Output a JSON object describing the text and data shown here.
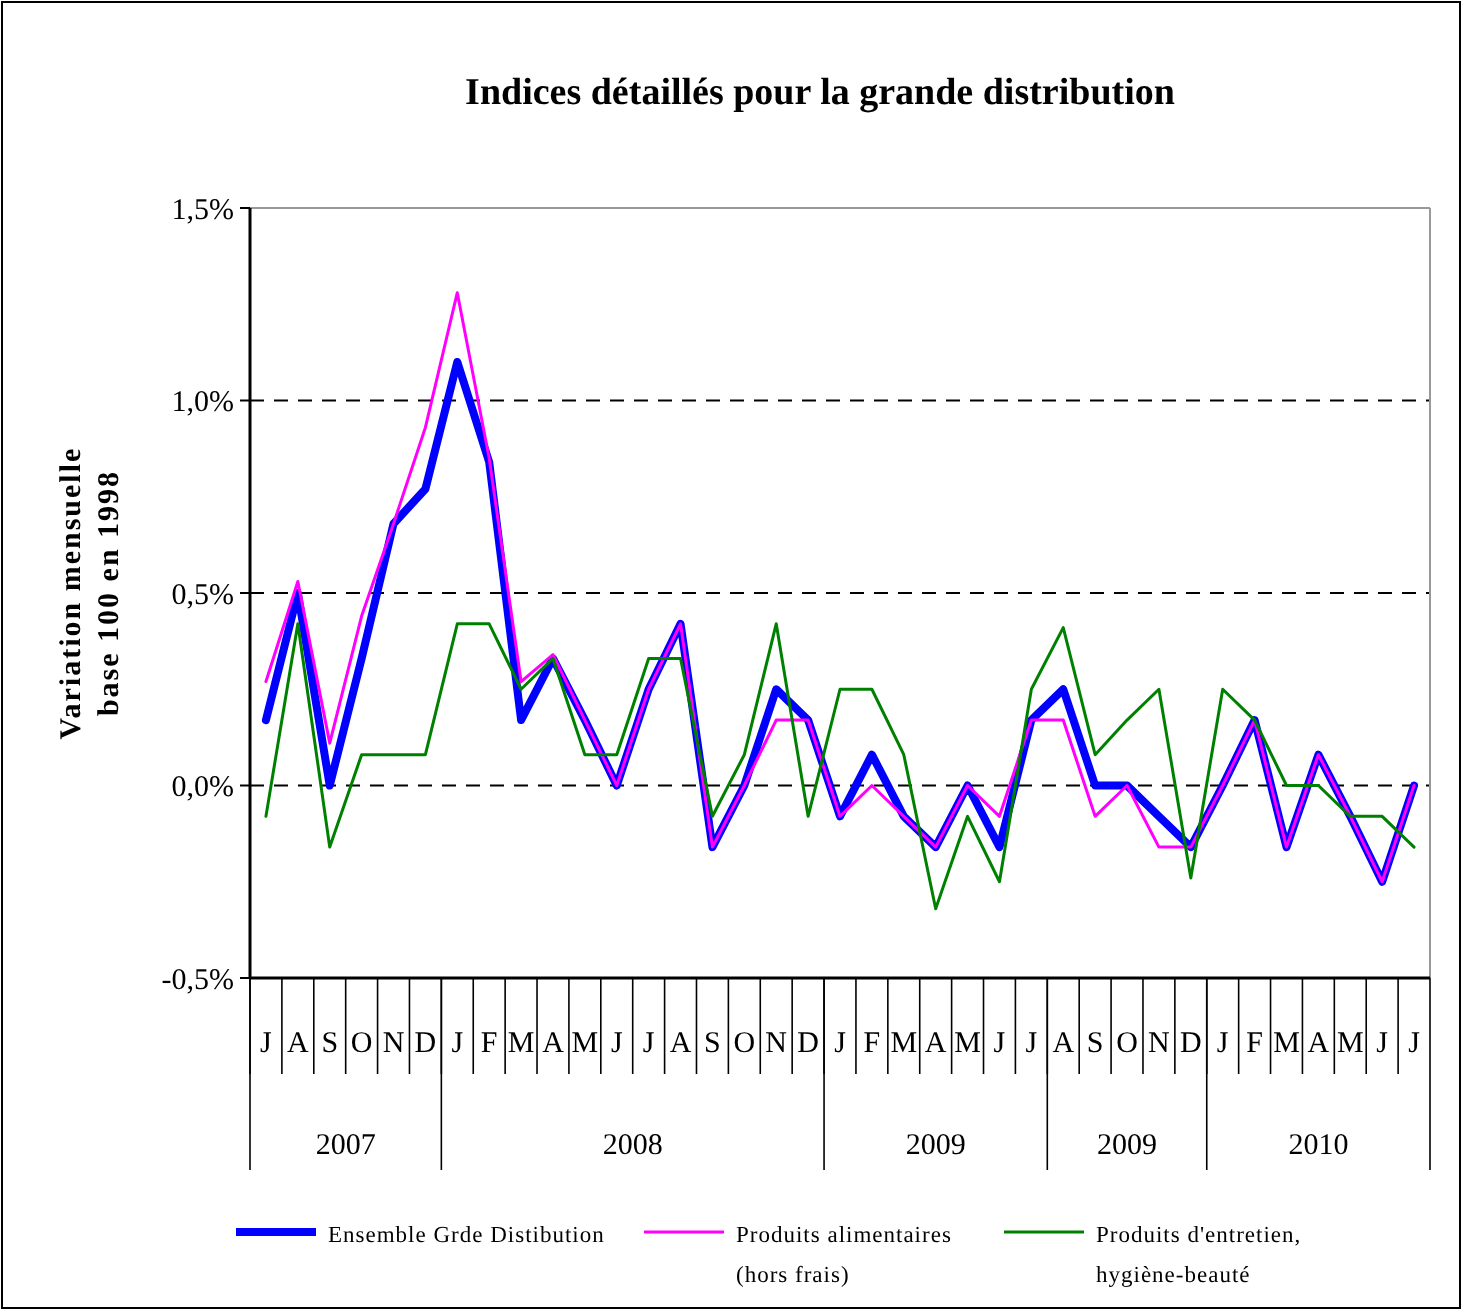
{
  "chart_data": {
    "type": "line",
    "title": "Indices détaillés pour la grande distribution",
    "ylabel": "Variation mensuelle\nbase 100 en 1998",
    "categories": [
      "J",
      "A",
      "S",
      "O",
      "N",
      "D",
      "J",
      "F",
      "M",
      "A",
      "M",
      "J",
      "J",
      "A",
      "S",
      "O",
      "N",
      "D",
      "J",
      "F",
      "M",
      "A",
      "M",
      "J",
      "J",
      "A",
      "S",
      "O",
      "N",
      "D",
      "J",
      "F",
      "M",
      "A",
      "M",
      "J",
      "J"
    ],
    "annotations": [
      "2007",
      "2008",
      "2009",
      "2009",
      "2010"
    ],
    "series": [
      {
        "name": "Ensemble Grde Distibution",
        "color": "#0000ff",
        "values": [
          0.17,
          0.5,
          0,
          0.33,
          0.68,
          0.77,
          1.1,
          0.84,
          0.17,
          0.33,
          0.17,
          0,
          0.25,
          0.42,
          -0.16,
          0,
          0.25,
          0.17,
          -0.08,
          0.08,
          -0.08,
          -0.16,
          0,
          -0.16,
          0.17,
          0.25,
          0,
          0,
          -0.08,
          -0.16,
          0,
          0.17,
          -0.16,
          0.08,
          -0.08,
          -0.25,
          0
        ]
      },
      {
        "name": "Produits alimentaires\n(hors frais)",
        "color": "#ff00ff",
        "values": [
          0.27,
          0.53,
          0.11,
          0.44,
          0.68,
          0.93,
          1.28,
          0.85,
          0.27,
          0.34,
          0.17,
          0,
          0.25,
          0.42,
          -0.16,
          0,
          0.17,
          0.17,
          -0.08,
          0,
          -0.08,
          -0.16,
          0,
          -0.08,
          0.17,
          0.17,
          -0.08,
          0,
          -0.16,
          -0.16,
          0,
          0.17,
          -0.16,
          0.08,
          -0.08,
          -0.25,
          0
        ]
      },
      {
        "name": "Produits d'entretien,\nhygiène-beauté",
        "color": "#008000",
        "values": [
          -0.08,
          0.42,
          -0.16,
          0.08,
          0.08,
          0.08,
          0.42,
          0.42,
          0.25,
          0.33,
          0.08,
          0.08,
          0.33,
          0.33,
          -0.08,
          0.08,
          0.42,
          -0.08,
          0.25,
          0.25,
          0.08,
          -0.32,
          -0.08,
          -0.25,
          0.25,
          0.41,
          0.08,
          0.17,
          0.25,
          -0.24,
          0.25,
          0.17,
          0,
          0,
          -0.08,
          -0.08,
          -0.16
        ]
      }
    ],
    "ylim": [
      -0.5,
      1.5
    ],
    "yticks": [
      {
        "value": -0.5,
        "label": "-0,5%"
      },
      {
        "value": 0,
        "label": "0,0%"
      },
      {
        "value": 0.5,
        "label": "0,5%"
      },
      {
        "value": 1,
        "label": "1,0%"
      },
      {
        "value": 1.5,
        "label": "1,5%"
      }
    ],
    "grid": "y",
    "legend": "bottom",
    "line_style": "solid"
  }
}
